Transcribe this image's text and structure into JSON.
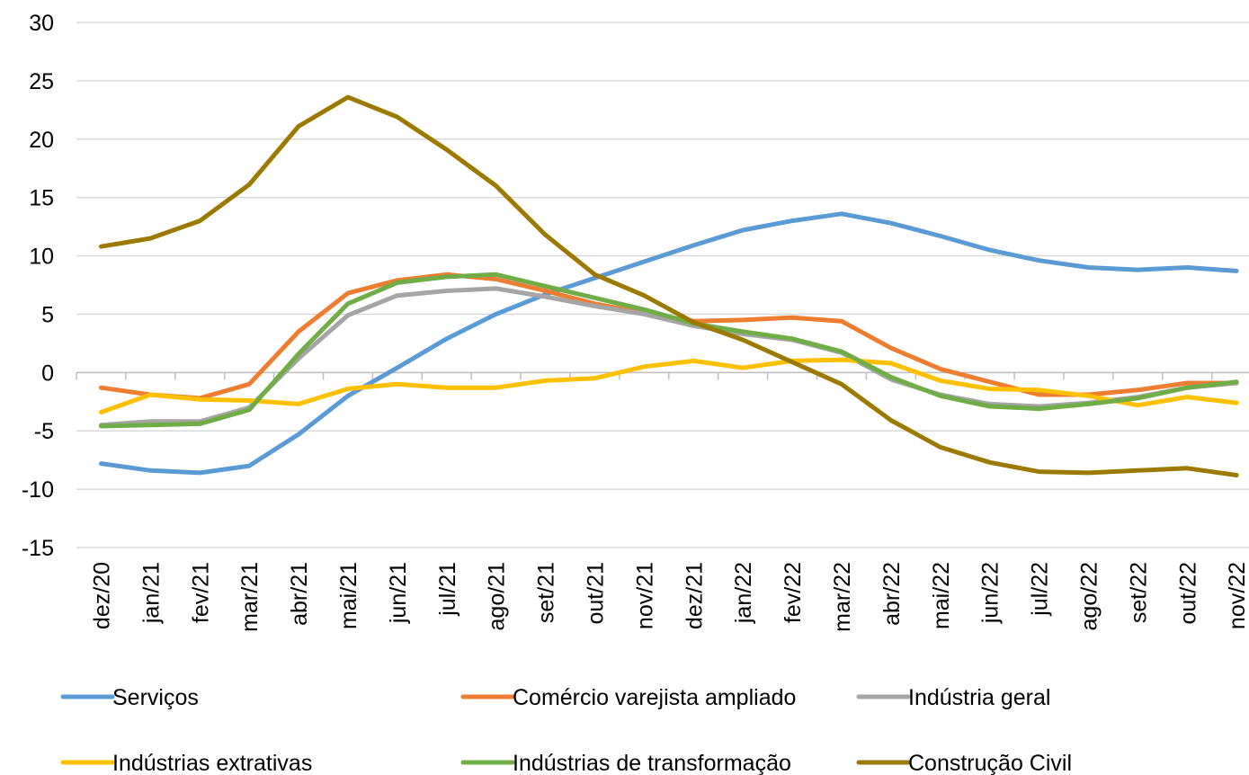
{
  "chart_data": {
    "type": "line",
    "categories": [
      "dez/20",
      "jan/21",
      "fev/21",
      "mar/21",
      "abr/21",
      "mai/21",
      "jun/21",
      "jul/21",
      "ago/21",
      "set/21",
      "out/21",
      "nov/21",
      "dez/21",
      "jan/22",
      "fev/22",
      "mar/22",
      "abr/22",
      "mai/22",
      "jun/22",
      "jul/22",
      "ago/22",
      "set/22",
      "out/22",
      "nov/22"
    ],
    "series": [
      {
        "name": "Serviços",
        "color": "#5b9bd5",
        "values": [
          -7.8,
          -8.4,
          -8.6,
          -8.0,
          -5.3,
          -2.0,
          0.4,
          2.9,
          5.0,
          6.7,
          8.1,
          9.5,
          10.9,
          12.2,
          13.0,
          13.6,
          12.8,
          11.7,
          10.5,
          9.6,
          9.0,
          8.8,
          9.0,
          8.7
        ]
      },
      {
        "name": "Comércio varejista ampliado",
        "color": "#ed7d31",
        "values": [
          -1.3,
          -1.9,
          -2.2,
          -1.0,
          3.5,
          6.8,
          7.9,
          8.4,
          8.0,
          7.0,
          5.9,
          5.1,
          4.4,
          4.5,
          4.7,
          4.4,
          2.1,
          0.3,
          -0.8,
          -1.9,
          -1.9,
          -1.5,
          -0.9,
          -0.9
        ]
      },
      {
        "name": "Indústria geral",
        "color": "#a5a5a5",
        "values": [
          -4.5,
          -4.2,
          -4.2,
          -3.0,
          1.2,
          4.9,
          6.6,
          7.0,
          7.2,
          6.5,
          5.7,
          5.0,
          4.0,
          3.3,
          2.8,
          1.7,
          -0.6,
          -1.9,
          -2.7,
          -2.9,
          -2.6,
          -2.1,
          -1.3,
          -0.9
        ]
      },
      {
        "name": "Indústrias extrativas",
        "color": "#ffc000",
        "values": [
          -3.4,
          -1.9,
          -2.3,
          -2.4,
          -2.7,
          -1.4,
          -1.0,
          -1.3,
          -1.3,
          -0.7,
          -0.5,
          0.5,
          1.0,
          0.4,
          1.0,
          1.1,
          0.8,
          -0.7,
          -1.4,
          -1.5,
          -2.0,
          -2.8,
          -2.1,
          -2.6
        ]
      },
      {
        "name": "Indústrias de transformação",
        "color": "#70ad47",
        "values": [
          -4.6,
          -4.5,
          -4.4,
          -3.2,
          1.6,
          5.9,
          7.7,
          8.2,
          8.4,
          7.4,
          6.4,
          5.4,
          4.2,
          3.5,
          2.9,
          1.8,
          -0.4,
          -2.0,
          -2.9,
          -3.1,
          -2.7,
          -2.2,
          -1.3,
          -0.8
        ]
      },
      {
        "name": "Construção Civil",
        "color": "#9c7a00",
        "values": [
          10.8,
          11.5,
          13.0,
          16.1,
          21.1,
          23.6,
          21.9,
          19.1,
          16.0,
          11.8,
          8.4,
          6.6,
          4.3,
          2.8,
          0.9,
          -1.0,
          -4.1,
          -6.4,
          -7.7,
          -8.5,
          -8.6,
          -8.4,
          -8.2,
          -8.8
        ]
      }
    ],
    "ylim": [
      -15,
      30
    ],
    "yticks": [
      -15,
      -10,
      -5,
      0,
      5,
      10,
      15,
      20,
      25,
      30
    ],
    "grid": true
  }
}
